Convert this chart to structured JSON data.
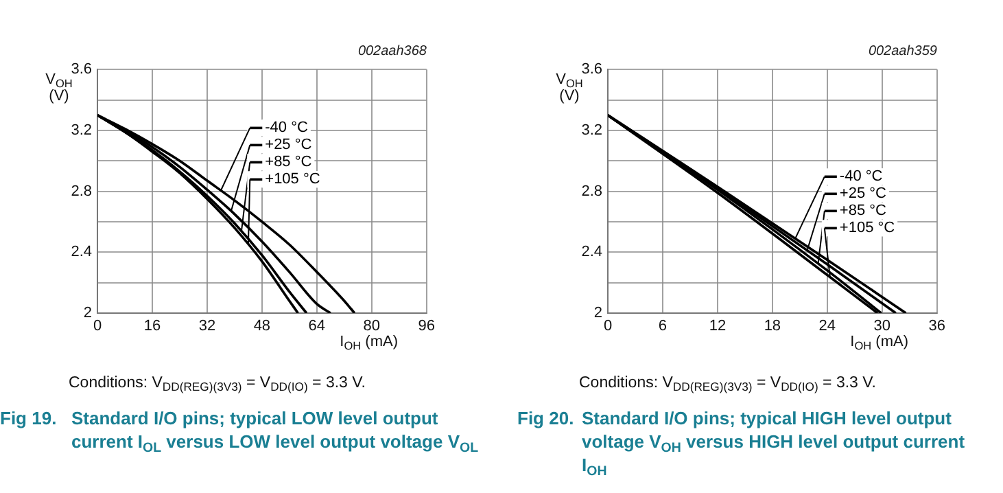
{
  "chart_data": [
    {
      "type": "line",
      "title": "Fig 19.",
      "subtitle": "Standard I/O pins; typical LOW level output current I$_{OL}$ versus LOW level output voltage V$_{OL}$",
      "xlabel": "I$_{OH}$ (mA)",
      "ylabel": "V$_{OH}$ (V)",
      "annotations": [
        "002aah368",
        "Conditions: V$_{DD(REG)(3V3)}$ = V$_{DD(IO)}$ = 3.3 V."
      ],
      "series": [
        {
          "name": "-40 °C",
          "color": "#000000",
          "x": [
            0,
            8,
            16,
            24,
            32,
            40,
            48,
            56,
            64,
            72,
            75
          ],
          "values": [
            3.3,
            3.21,
            3.11,
            3.0,
            2.87,
            2.74,
            2.6,
            2.45,
            2.27,
            2.08,
            2.0
          ]
        },
        {
          "name": "+25 °C",
          "color": "#000000",
          "x": [
            0,
            8,
            16,
            24,
            32,
            40,
            48,
            56,
            64,
            68
          ],
          "values": [
            3.3,
            3.2,
            3.09,
            2.96,
            2.81,
            2.65,
            2.47,
            2.27,
            2.06,
            2.0
          ]
        },
        {
          "name": "+85 °C",
          "color": "#000000",
          "x": [
            0,
            8,
            16,
            24,
            32,
            40,
            48,
            56,
            61
          ],
          "values": [
            3.3,
            3.19,
            3.07,
            2.93,
            2.77,
            2.59,
            2.38,
            2.14,
            2.0
          ]
        },
        {
          "name": "+105 °C",
          "color": "#000000",
          "x": [
            0,
            8,
            16,
            24,
            32,
            40,
            48,
            56,
            58.5
          ],
          "values": [
            3.3,
            3.19,
            3.06,
            2.92,
            2.75,
            2.56,
            2.34,
            2.08,
            2.0
          ]
        }
      ],
      "xlim": [
        0,
        96
      ],
      "xticks": [
        0,
        16,
        32,
        48,
        64,
        80,
        96
      ],
      "ylim": [
        2,
        3.6
      ],
      "yticks": [
        2,
        {
          "value": 2.2,
          "label": null
        },
        2.4,
        {
          "value": 2.6,
          "label": null
        },
        2.8,
        {
          "value": 3.0,
          "label": null
        },
        3.2,
        {
          "value": 3.4,
          "label": null
        },
        3.6
      ],
      "grid": true,
      "legend": "right",
      "marker": "none",
      "line_style": "solid"
    },
    {
      "type": "line",
      "title": "Fig 20.",
      "subtitle": "Standard I/O pins; typical HIGH level output voltage V$_{OH}$ versus HIGH level output current I$_{OH}$",
      "xlabel": "I$_{OH}$ (mA)",
      "ylabel": "V$_{OH}$ (V)",
      "annotations": [
        "002aah359",
        "Conditions: V$_{DD(REG)(3V3)}$ = V$_{DD(IO)}$ = 3.3 V."
      ],
      "series": [
        {
          "name": "-40 °C",
          "color": "#000000",
          "x": [
            0,
            12,
            24,
            32.6
          ],
          "values": [
            3.3,
            2.83,
            2.35,
            2.0
          ]
        },
        {
          "name": "+25 °C",
          "color": "#000000",
          "x": [
            0,
            12,
            24,
            31.5
          ],
          "values": [
            3.3,
            2.82,
            2.32,
            2.0
          ]
        },
        {
          "name": "+85 °C",
          "color": "#000000",
          "x": [
            0,
            12,
            24,
            29.9
          ],
          "values": [
            3.3,
            2.81,
            2.28,
            2.0
          ]
        },
        {
          "name": "+105 °C",
          "color": "#000000",
          "x": [
            0,
            12,
            24,
            29.5
          ],
          "values": [
            3.3,
            2.79,
            2.25,
            2.0
          ]
        }
      ],
      "xlim": [
        0,
        36
      ],
      "xticks": [
        0,
        6,
        12,
        18,
        24,
        30,
        36
      ],
      "ylim": [
        2,
        3.6
      ],
      "yticks": [
        2,
        {
          "value": 2.2,
          "label": null
        },
        2.4,
        {
          "value": 2.6,
          "label": null
        },
        2.8,
        {
          "value": 3.0,
          "label": null
        },
        3.2,
        {
          "value": 3.4,
          "label": null
        },
        3.6
      ],
      "grid": true,
      "legend": "right",
      "marker": "none",
      "line_style": "solid"
    }
  ]
}
